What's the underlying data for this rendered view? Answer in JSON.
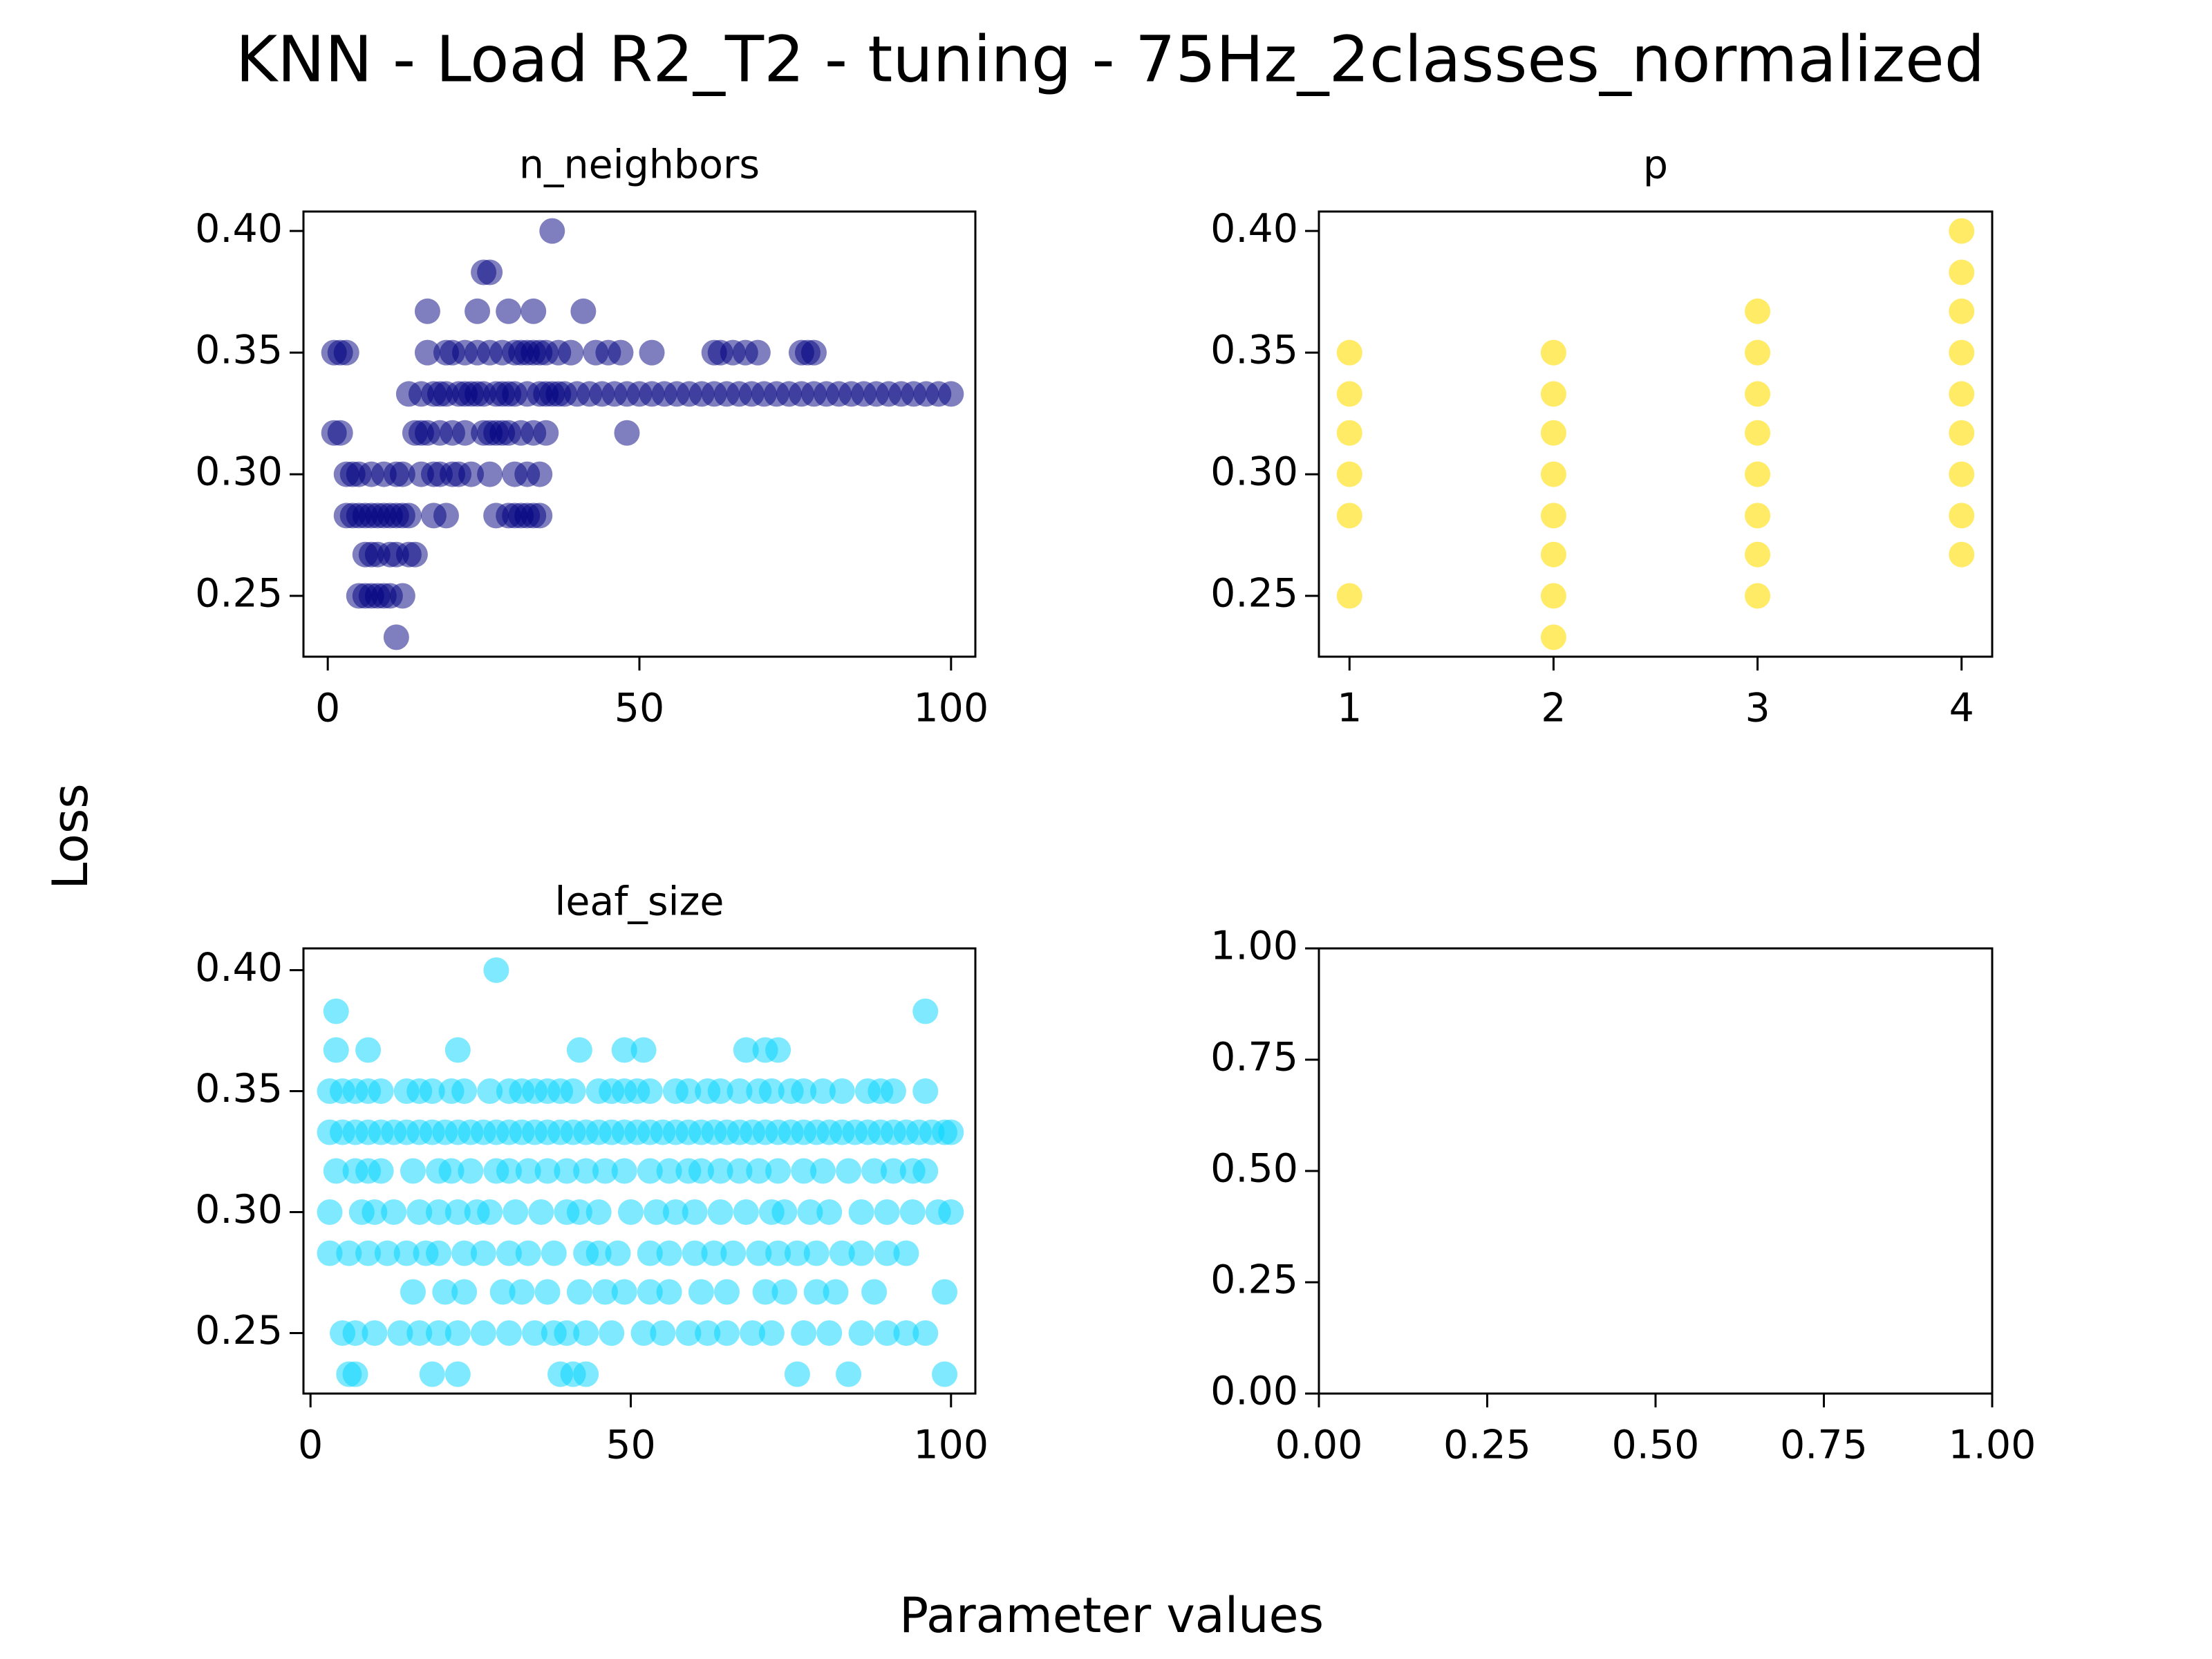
{
  "title": "KNN - Load R2_T2 - tuning - 75Hz_2classes_normalized",
  "xlabel": "Parameter values",
  "ylabel": "Loss",
  "chart_data": [
    {
      "type": "scatter",
      "title": "n_neighbors",
      "color": "#000080",
      "alpha": 0.5,
      "xlim": [
        -3.9,
        103.9
      ],
      "ylim": [
        0.225,
        0.408
      ],
      "xticks": [
        0,
        50,
        100
      ],
      "yticks": [
        0.25,
        {
          "value": 0.3,
          "label": "0.30"
        },
        0.35,
        {
          "value": 0.4,
          "label": "0.40"
        }
      ],
      "x": [
        1,
        1,
        2,
        2,
        3,
        3,
        3,
        4,
        4,
        5,
        5,
        5,
        6,
        6,
        6,
        7,
        7,
        7,
        7,
        8,
        8,
        8,
        9,
        9,
        9,
        10,
        10,
        10,
        11,
        11,
        11,
        11,
        12,
        12,
        12,
        13,
        13,
        13,
        14,
        14,
        15,
        15,
        15,
        16,
        16,
        16,
        17,
        17,
        17,
        18,
        18,
        18,
        19,
        19,
        19,
        20,
        20,
        20,
        21,
        21,
        22,
        22,
        22,
        23,
        23,
        24,
        24,
        24,
        25,
        25,
        25,
        26,
        26,
        26,
        26,
        27,
        27,
        27,
        28,
        28,
        28,
        29,
        29,
        29,
        29,
        30,
        30,
        30,
        30,
        31,
        31,
        31,
        32,
        32,
        32,
        32,
        33,
        33,
        33,
        33,
        34,
        34,
        34,
        34,
        35,
        35,
        35,
        36,
        36,
        37,
        37,
        39,
        41,
        43,
        45,
        47,
        48,
        52,
        62,
        63,
        65,
        67,
        69,
        76,
        77,
        78,
        38,
        40,
        42,
        44,
        46,
        48,
        50,
        52,
        54,
        56,
        58,
        60,
        62,
        64,
        66,
        68,
        70,
        72,
        74,
        76,
        78,
        80,
        82,
        84,
        86,
        88,
        90,
        92,
        94,
        96,
        98,
        100
      ],
      "values": [
        0.35,
        0.317,
        0.35,
        0.317,
        0.35,
        0.3,
        0.283,
        0.3,
        0.283,
        0.3,
        0.283,
        0.25,
        0.283,
        0.267,
        0.25,
        0.3,
        0.283,
        0.267,
        0.25,
        0.283,
        0.267,
        0.25,
        0.3,
        0.283,
        0.25,
        0.283,
        0.267,
        0.25,
        0.3,
        0.283,
        0.267,
        0.233,
        0.3,
        0.283,
        0.25,
        0.333,
        0.283,
        0.267,
        0.317,
        0.267,
        0.333,
        0.317,
        0.3,
        0.367,
        0.35,
        0.317,
        0.333,
        0.3,
        0.283,
        0.333,
        0.317,
        0.3,
        0.35,
        0.333,
        0.283,
        0.35,
        0.317,
        0.3,
        0.333,
        0.3,
        0.35,
        0.333,
        0.317,
        0.333,
        0.3,
        0.367,
        0.35,
        0.333,
        0.383,
        0.333,
        0.317,
        0.383,
        0.35,
        0.317,
        0.3,
        0.333,
        0.317,
        0.283,
        0.35,
        0.333,
        0.317,
        0.367,
        0.333,
        0.317,
        0.283,
        0.35,
        0.333,
        0.3,
        0.283,
        0.35,
        0.317,
        0.283,
        0.35,
        0.333,
        0.3,
        0.283,
        0.367,
        0.35,
        0.317,
        0.283,
        0.35,
        0.333,
        0.3,
        0.283,
        0.35,
        0.333,
        0.317,
        0.4,
        0.333,
        0.35,
        0.333,
        0.35,
        0.367,
        0.35,
        0.35,
        0.35,
        0.317,
        0.35,
        0.35,
        0.35,
        0.35,
        0.35,
        0.35,
        0.35,
        0.35,
        0.35,
        0.333,
        0.333,
        0.333,
        0.333,
        0.333,
        0.333,
        0.333,
        0.333,
        0.333,
        0.333,
        0.333,
        0.333,
        0.333,
        0.333,
        0.333,
        0.333,
        0.333,
        0.333,
        0.333,
        0.333,
        0.333,
        0.333,
        0.333,
        0.333,
        0.333,
        0.333,
        0.333,
        0.333,
        0.333,
        0.333,
        0.333,
        0.333
      ]
    },
    {
      "type": "scatter",
      "title": "p",
      "color": "#ffdd00",
      "alpha": 0.6,
      "xlim": [
        0.85,
        4.15
      ],
      "ylim": [
        0.225,
        0.408
      ],
      "xticks": [
        1,
        2,
        3,
        4
      ],
      "yticks": [
        0.25,
        {
          "value": 0.3,
          "label": "0.30"
        },
        0.35,
        {
          "value": 0.4,
          "label": "0.40"
        }
      ],
      "x": [
        1,
        1,
        1,
        1,
        1,
        1,
        2,
        2,
        2,
        2,
        2,
        2,
        2,
        2,
        3,
        3,
        3,
        3,
        3,
        3,
        3,
        3,
        4,
        4,
        4,
        4,
        4,
        4,
        4,
        4,
        4
      ],
      "values": [
        0.35,
        0.333,
        0.317,
        0.3,
        0.283,
        0.25,
        0.35,
        0.333,
        0.317,
        0.3,
        0.283,
        0.267,
        0.25,
        0.233,
        0.367,
        0.35,
        0.333,
        0.317,
        0.3,
        0.283,
        0.267,
        0.25,
        0.4,
        0.383,
        0.367,
        0.35,
        0.333,
        0.317,
        0.3,
        0.283,
        0.267
      ]
    },
    {
      "type": "scatter",
      "title": "leaf_size",
      "color": "#00d4ff",
      "alpha": 0.5,
      "xlim": [
        -1.1,
        103.8
      ],
      "ylim": [
        0.225,
        0.409
      ],
      "xticks": [
        0,
        50,
        100
      ],
      "yticks": [
        0.25,
        {
          "value": 0.3,
          "label": "0.30"
        },
        0.35,
        {
          "value": 0.4,
          "label": "0.40"
        }
      ],
      "x": [
        3,
        5,
        7,
        9,
        11,
        13,
        15,
        17,
        19,
        21,
        23,
        25,
        27,
        29,
        31,
        33,
        35,
        37,
        39,
        41,
        43,
        45,
        47,
        49,
        51,
        53,
        55,
        57,
        59,
        61,
        63,
        65,
        67,
        69,
        71,
        73,
        75,
        77,
        79,
        81,
        83,
        85,
        87,
        89,
        91,
        93,
        95,
        97,
        99,
        100,
        29,
        4,
        96,
        4,
        9,
        23,
        42,
        49,
        52,
        68,
        71,
        73,
        3,
        5,
        7,
        9,
        11,
        15,
        17,
        19,
        22,
        24,
        28,
        31,
        33,
        35,
        37,
        39,
        41,
        45,
        47,
        49,
        51,
        53,
        57,
        59,
        62,
        64,
        67,
        70,
        72,
        75,
        77,
        80,
        83,
        87,
        89,
        91,
        96,
        4,
        7,
        9,
        11,
        16,
        20,
        22,
        25,
        29,
        31,
        34,
        37,
        40,
        43,
        46,
        49,
        53,
        56,
        59,
        61,
        64,
        67,
        70,
        73,
        77,
        80,
        84,
        88,
        91,
        94,
        96,
        3,
        8,
        10,
        13,
        17,
        20,
        23,
        26,
        28,
        32,
        36,
        40,
        42,
        45,
        50,
        54,
        57,
        60,
        64,
        68,
        72,
        74,
        78,
        81,
        86,
        90,
        94,
        98,
        100,
        3,
        6,
        9,
        12,
        15,
        18,
        20,
        24,
        27,
        31,
        34,
        38,
        43,
        45,
        48,
        53,
        56,
        60,
        63,
        66,
        70,
        73,
        76,
        79,
        83,
        86,
        90,
        93,
        16,
        21,
        24,
        30,
        33,
        37,
        42,
        46,
        49,
        53,
        56,
        61,
        65,
        71,
        74,
        79,
        82,
        88,
        99,
        5,
        7,
        10,
        14,
        17,
        20,
        23,
        27,
        31,
        35,
        38,
        40,
        43,
        47,
        52,
        55,
        59,
        62,
        65,
        69,
        72,
        77,
        81,
        86,
        90,
        93,
        96,
        6,
        7,
        19,
        23,
        39,
        41,
        43,
        76,
        84,
        99
      ],
      "values": [
        0.333,
        0.333,
        0.333,
        0.333,
        0.333,
        0.333,
        0.333,
        0.333,
        0.333,
        0.333,
        0.333,
        0.333,
        0.333,
        0.333,
        0.333,
        0.333,
        0.333,
        0.333,
        0.333,
        0.333,
        0.333,
        0.333,
        0.333,
        0.333,
        0.333,
        0.333,
        0.333,
        0.333,
        0.333,
        0.333,
        0.333,
        0.333,
        0.333,
        0.333,
        0.333,
        0.333,
        0.333,
        0.333,
        0.333,
        0.333,
        0.333,
        0.333,
        0.333,
        0.333,
        0.333,
        0.333,
        0.333,
        0.333,
        0.333,
        0.333,
        0.4,
        0.383,
        0.383,
        0.367,
        0.367,
        0.367,
        0.367,
        0.367,
        0.367,
        0.367,
        0.367,
        0.367,
        0.35,
        0.35,
        0.35,
        0.35,
        0.35,
        0.35,
        0.35,
        0.35,
        0.35,
        0.35,
        0.35,
        0.35,
        0.35,
        0.35,
        0.35,
        0.35,
        0.35,
        0.35,
        0.35,
        0.35,
        0.35,
        0.35,
        0.35,
        0.35,
        0.35,
        0.35,
        0.35,
        0.35,
        0.35,
        0.35,
        0.35,
        0.35,
        0.35,
        0.35,
        0.35,
        0.35,
        0.35,
        0.317,
        0.317,
        0.317,
        0.317,
        0.317,
        0.317,
        0.317,
        0.317,
        0.317,
        0.317,
        0.317,
        0.317,
        0.317,
        0.317,
        0.317,
        0.317,
        0.317,
        0.317,
        0.317,
        0.317,
        0.317,
        0.317,
        0.317,
        0.317,
        0.317,
        0.317,
        0.317,
        0.317,
        0.317,
        0.317,
        0.317,
        0.3,
        0.3,
        0.3,
        0.3,
        0.3,
        0.3,
        0.3,
        0.3,
        0.3,
        0.3,
        0.3,
        0.3,
        0.3,
        0.3,
        0.3,
        0.3,
        0.3,
        0.3,
        0.3,
        0.3,
        0.3,
        0.3,
        0.3,
        0.3,
        0.3,
        0.3,
        0.3,
        0.3,
        0.3,
        0.283,
        0.283,
        0.283,
        0.283,
        0.283,
        0.283,
        0.283,
        0.283,
        0.283,
        0.283,
        0.283,
        0.283,
        0.283,
        0.283,
        0.283,
        0.283,
        0.283,
        0.283,
        0.283,
        0.283,
        0.283,
        0.283,
        0.283,
        0.283,
        0.283,
        0.283,
        0.283,
        0.283,
        0.267,
        0.267,
        0.267,
        0.267,
        0.267,
        0.267,
        0.267,
        0.267,
        0.267,
        0.267,
        0.267,
        0.267,
        0.267,
        0.267,
        0.267,
        0.267,
        0.267,
        0.267,
        0.267,
        0.25,
        0.25,
        0.25,
        0.25,
        0.25,
        0.25,
        0.25,
        0.25,
        0.25,
        0.25,
        0.25,
        0.25,
        0.25,
        0.25,
        0.25,
        0.25,
        0.25,
        0.25,
        0.25,
        0.25,
        0.25,
        0.25,
        0.25,
        0.25,
        0.25,
        0.25,
        0.25,
        0.233,
        0.233,
        0.233,
        0.233,
        0.233,
        0.233,
        0.233,
        0.233,
        0.233,
        0.233
      ]
    },
    {
      "type": "scatter",
      "xlim": [
        0,
        1
      ],
      "ylim": [
        0,
        1
      ],
      "xticks": [
        {
          "value": 0,
          "label": "0.00"
        },
        {
          "value": 0.25,
          "label": "0.25"
        },
        {
          "value": 0.5,
          "label": "0.50"
        },
        {
          "value": 0.75,
          "label": "0.75"
        },
        {
          "value": 1,
          "label": "1.00"
        }
      ],
      "yticks": [
        {
          "value": 0,
          "label": "0.00"
        },
        {
          "value": 0.25,
          "label": "0.25"
        },
        {
          "value": 0.5,
          "label": "0.50"
        },
        {
          "value": 0.75,
          "label": "0.75"
        },
        {
          "value": 1,
          "label": "1.00"
        }
      ]
    }
  ]
}
